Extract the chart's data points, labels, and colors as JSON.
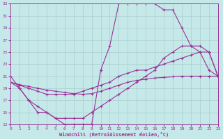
{
  "bg_color": "#c5e8e8",
  "line_color": "#993399",
  "grid_color": "#aacccc",
  "xlabel": "Windchill (Refroidissement éolien,°C)",
  "xlim": [
    0,
    23
  ],
  "ylim": [
    13,
    33
  ],
  "xticks": [
    0,
    1,
    2,
    3,
    4,
    5,
    6,
    7,
    8,
    9,
    10,
    11,
    12,
    13,
    14,
    15,
    16,
    17,
    18,
    19,
    20,
    21,
    22,
    23
  ],
  "yticks": [
    13,
    15,
    17,
    19,
    21,
    23,
    25,
    27,
    29,
    31,
    33
  ],
  "curve1_x": [
    0,
    1,
    2,
    3,
    4,
    5,
    6,
    7,
    8,
    9,
    10,
    11,
    12,
    13,
    14,
    15,
    16,
    17,
    18,
    19,
    20,
    21,
    22,
    23
  ],
  "curve1_y": [
    21,
    19,
    17,
    15,
    15,
    14,
    13,
    13,
    13,
    13,
    22,
    26,
    33,
    33,
    33,
    33,
    33,
    32,
    32,
    29,
    26,
    25,
    22,
    21
  ],
  "curve2_x": [
    0,
    1,
    2,
    3,
    4,
    5,
    6,
    7,
    8,
    9,
    10,
    11,
    12,
    13,
    14,
    15,
    16,
    17,
    18,
    19,
    20,
    21,
    22,
    23
  ],
  "curve2_y": [
    20,
    19.5,
    19,
    18.5,
    18,
    18,
    18,
    18,
    18.5,
    19,
    19.5,
    20,
    21,
    21.5,
    22,
    22,
    22.5,
    23,
    23.5,
    24,
    24.5,
    25,
    25,
    21
  ],
  "curve3_x": [
    0,
    1,
    2,
    3,
    4,
    5,
    6,
    7,
    8,
    9,
    10,
    11,
    12,
    13,
    14,
    15,
    16,
    17,
    18,
    19,
    20,
    21,
    22,
    23
  ],
  "curve3_y": [
    20,
    19.6,
    19.3,
    19.0,
    18.7,
    18.5,
    18.3,
    18.1,
    18.0,
    18.1,
    18.5,
    19.0,
    19.5,
    20.0,
    20.3,
    20.5,
    20.7,
    20.8,
    20.9,
    21.0,
    21.0,
    21.0,
    21.0,
    21.0
  ],
  "curve4_x": [
    0,
    1,
    2,
    3,
    4,
    5,
    6,
    7,
    8,
    9,
    10,
    11,
    12,
    13,
    14,
    15,
    16,
    17,
    18,
    19,
    20,
    21,
    22,
    23
  ],
  "curve4_y": [
    20,
    19,
    17,
    16,
    15,
    14,
    14,
    14,
    14,
    15,
    16,
    17,
    18,
    19,
    20,
    21,
    22,
    24,
    25,
    26,
    26,
    26,
    25,
    21
  ]
}
